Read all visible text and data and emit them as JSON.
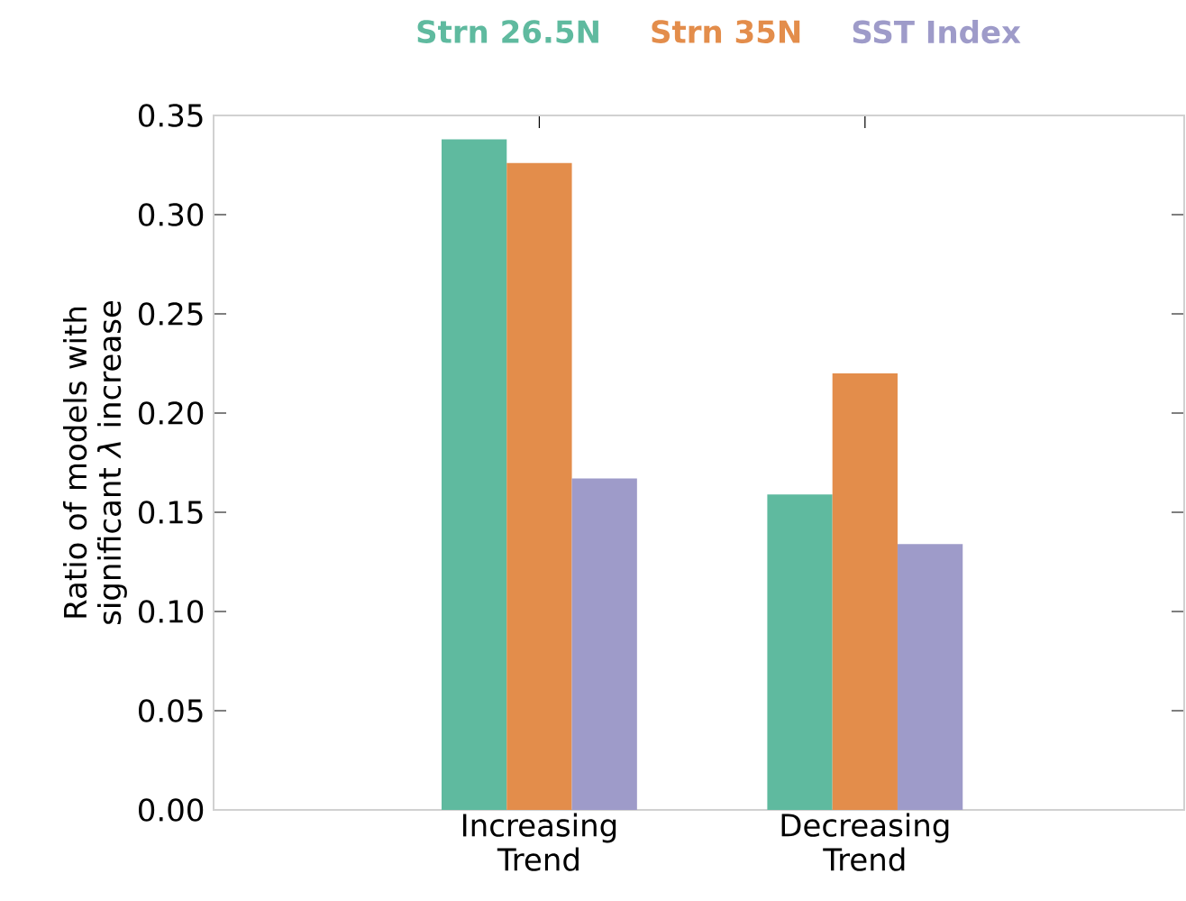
{
  "chart_data": {
    "type": "bar",
    "ylabel": "Ratio of models with significant *λ* increase",
    "categories": [
      "Increasing Trend",
      "Decreasing Trend"
    ],
    "series": [
      {
        "name": "Strn 26.5N",
        "color": "#5fba9f",
        "values": [
          0.338,
          0.159
        ]
      },
      {
        "name": "Strn 35N",
        "color": "#e38d4b",
        "values": [
          0.326,
          0.22
        ]
      },
      {
        "name": "SST Index",
        "color": "#9e9bc9",
        "values": [
          0.167,
          0.134
        ]
      }
    ],
    "ylim": [
      0,
      0.35
    ],
    "yticks": [
      {
        "value": 0,
        "label": "0.00"
      },
      0.05,
      {
        "value": 0.1,
        "label": "0.10"
      },
      0.15,
      {
        "value": 0.2,
        "label": "0.20"
      },
      0.25,
      {
        "value": 0.3,
        "label": "0.30"
      },
      0.35
    ],
    "legend": "top",
    "grid": false
  }
}
